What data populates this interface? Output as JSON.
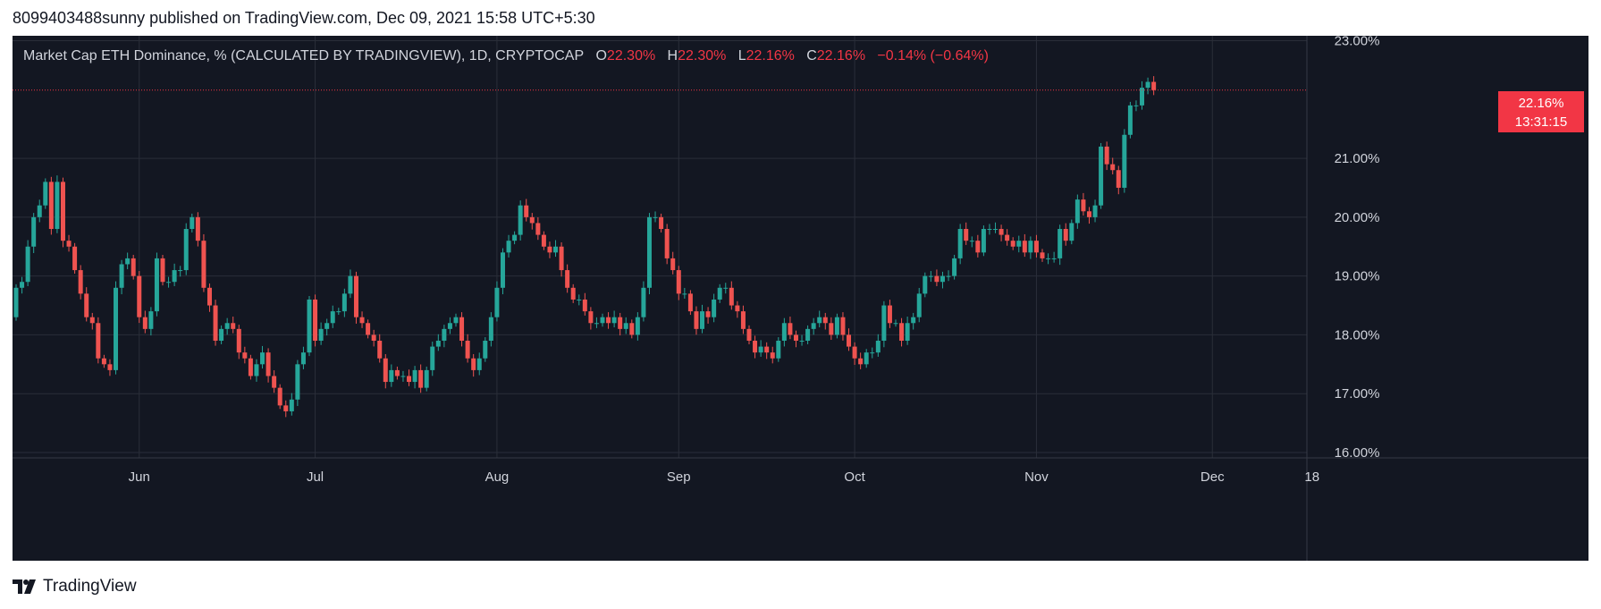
{
  "header": {
    "text": "8099403488sunny published on TradingView.com, Dec 09, 2021 15:58 UTC+5:30"
  },
  "legend": {
    "title": "Market Cap ETH Dominance, % (CALCULATED BY TRADINGVIEW), 1D, CRYPTOCAP",
    "o_label": "O",
    "o_value": "22.30%",
    "h_label": "H",
    "h_value": "22.30%",
    "l_label": "L",
    "l_value": "22.16%",
    "c_label": "C",
    "c_value": "22.16%",
    "change": "−0.14% (−0.64%)"
  },
  "price_tag": {
    "value": "22.16%",
    "countdown": "13:31:15"
  },
  "logo": {
    "text": "TradingView",
    "icon": "tradingview-logo-icon"
  },
  "colors": {
    "background": "#131722",
    "up": "#26a69a",
    "down": "#ef5350",
    "grid": "#2a2e39",
    "text": "#d1d4dc"
  },
  "chart_data": {
    "type": "candlestick",
    "y_ticks": [
      "23.00%",
      "21.00%",
      "20.00%",
      "19.00%",
      "18.00%",
      "17.00%",
      "16.00%"
    ],
    "y_tick_values": [
      23,
      21,
      20,
      19,
      18,
      17,
      16
    ],
    "ylim": [
      16,
      23
    ],
    "x_ticks": [
      "Jun",
      "Jul",
      "Aug",
      "Sep",
      "Oct",
      "Nov",
      "Dec",
      "18"
    ],
    "x_tick_days": [
      21,
      51,
      82,
      113,
      143,
      174,
      204,
      221
    ],
    "first_date": "2021-05-11",
    "last_price": 22.16,
    "grid": true,
    "closes": [
      18.8,
      18.9,
      19.5,
      20.0,
      20.2,
      20.6,
      19.8,
      20.6,
      19.6,
      19.5,
      19.1,
      18.7,
      18.3,
      18.2,
      17.6,
      17.5,
      17.4,
      18.8,
      19.2,
      19.3,
      19.0,
      18.3,
      18.1,
      18.4,
      19.3,
      18.9,
      18.9,
      19.1,
      19.1,
      19.8,
      20.0,
      19.6,
      18.8,
      18.5,
      17.9,
      18.1,
      18.2,
      18.1,
      17.7,
      17.6,
      17.3,
      17.5,
      17.7,
      17.3,
      17.1,
      16.8,
      16.7,
      16.9,
      17.5,
      17.7,
      18.6,
      17.9,
      18.1,
      18.2,
      18.4,
      18.4,
      18.7,
      19.0,
      18.3,
      18.2,
      18.0,
      17.9,
      17.6,
      17.2,
      17.4,
      17.3,
      17.3,
      17.2,
      17.4,
      17.1,
      17.4,
      17.8,
      17.9,
      18.1,
      18.2,
      18.3,
      17.9,
      17.6,
      17.4,
      17.6,
      17.9,
      18.3,
      18.8,
      19.4,
      19.6,
      19.7,
      20.2,
      20.0,
      19.9,
      19.7,
      19.5,
      19.4,
      19.5,
      19.1,
      18.8,
      18.6,
      18.6,
      18.4,
      18.2,
      18.2,
      18.3,
      18.2,
      18.3,
      18.1,
      18.2,
      18.0,
      18.3,
      18.8,
      20.0,
      20.0,
      19.8,
      19.3,
      19.1,
      18.7,
      18.7,
      18.4,
      18.1,
      18.4,
      18.3,
      18.6,
      18.8,
      18.8,
      18.5,
      18.4,
      18.1,
      17.9,
      17.7,
      17.8,
      17.7,
      17.6,
      17.9,
      18.2,
      18.0,
      17.9,
      17.9,
      18.1,
      18.2,
      18.3,
      18.2,
      18.0,
      18.3,
      18.0,
      17.8,
      17.6,
      17.5,
      17.7,
      17.7,
      17.9,
      18.5,
      18.2,
      18.2,
      17.9,
      18.2,
      18.3,
      18.7,
      19.0,
      19.0,
      18.9,
      19.0,
      19.0,
      19.3,
      19.8,
      19.6,
      19.6,
      19.4,
      19.8,
      19.8,
      19.8,
      19.7,
      19.6,
      19.5,
      19.6,
      19.4,
      19.6,
      19.4,
      19.3,
      19.3,
      19.3,
      19.8,
      19.6,
      19.9,
      20.3,
      20.1,
      20.0,
      20.2,
      21.2,
      20.9,
      20.8,
      20.5,
      21.4,
      21.9,
      21.9,
      22.2,
      22.3,
      22.16
    ]
  }
}
